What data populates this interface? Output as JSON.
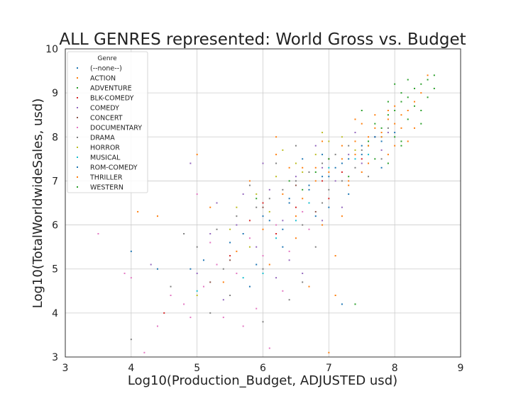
{
  "chart_data": {
    "type": "scatter",
    "title": "ALL GENRES represented: World Gross vs. Budget",
    "xlabel": "Log10(Production_Budget, ADJUSTED usd)",
    "ylabel": "Log10(TotalWorldwideSales, usd)",
    "xlim": [
      3,
      9
    ],
    "ylim": [
      3,
      10
    ],
    "xticks": [
      3,
      4,
      5,
      6,
      7,
      8,
      9
    ],
    "yticks": [
      3,
      4,
      5,
      6,
      7,
      8,
      9,
      10
    ],
    "grid": true,
    "legend": {
      "title": "Genre",
      "placement": "top-left",
      "entries": [
        "(--none--)",
        "ACTION",
        "ADVENTURE",
        "BLK-COMEDY",
        "COMEDY",
        "CONCERT",
        "DOCUMENTARY",
        "DRAMA",
        "HORROR",
        "MUSICAL",
        "ROM-COMEDY",
        "THRILLER",
        "WESTERN"
      ]
    },
    "series": [
      {
        "name": "(--none--)",
        "color": "#1f77b4",
        "points": [
          [
            4.0,
            5.4
          ],
          [
            4.9,
            5.0
          ],
          [
            5.5,
            5.6
          ],
          [
            6.0,
            6.2
          ],
          [
            6.4,
            6.6
          ],
          [
            6.7,
            6.9
          ],
          [
            7.0,
            7.1
          ],
          [
            7.2,
            7.4
          ],
          [
            7.5,
            7.6
          ],
          [
            7.8,
            7.9
          ],
          [
            8.0,
            8.1
          ],
          [
            5.8,
            4.6
          ],
          [
            6.3,
            5.9
          ],
          [
            7.3,
            6.7
          ],
          [
            6.9,
            7.6
          ]
        ]
      },
      {
        "name": "ACTION",
        "color": "#ff7f0e",
        "points": [
          [
            5.0,
            7.6
          ],
          [
            6.6,
            7.3
          ],
          [
            7.0,
            7.5
          ],
          [
            7.2,
            7.8
          ],
          [
            7.4,
            7.9
          ],
          [
            7.5,
            7.2
          ],
          [
            7.6,
            8.0
          ],
          [
            7.7,
            8.2
          ],
          [
            7.8,
            8.1
          ],
          [
            7.9,
            8.4
          ],
          [
            8.0,
            8.3
          ],
          [
            8.1,
            8.5
          ],
          [
            8.2,
            8.6
          ],
          [
            8.3,
            8.8
          ],
          [
            8.4,
            9.0
          ],
          [
            8.5,
            9.4
          ],
          [
            7.3,
            6.9
          ],
          [
            7.9,
            7.6
          ],
          [
            6.9,
            7.9
          ],
          [
            8.2,
            7.9
          ],
          [
            6.2,
            8.0
          ],
          [
            7.1,
            4.4
          ],
          [
            7.0,
            3.1
          ],
          [
            4.1,
            6.3
          ],
          [
            6.5,
            6.2
          ],
          [
            7.6,
            7.4
          ],
          [
            8.0,
            8.7
          ],
          [
            8.3,
            8.2
          ],
          [
            7.4,
            8.4
          ],
          [
            6.8,
            7.0
          ]
        ]
      },
      {
        "name": "ADVENTURE",
        "color": "#2ca02c",
        "points": [
          [
            7.6,
            7.8
          ],
          [
            7.8,
            8.2
          ],
          [
            7.9,
            8.5
          ],
          [
            8.0,
            8.6
          ],
          [
            8.1,
            8.8
          ],
          [
            8.2,
            8.9
          ],
          [
            8.3,
            9.1
          ],
          [
            8.4,
            9.2
          ],
          [
            8.5,
            8.9
          ],
          [
            8.6,
            9.1
          ],
          [
            8.0,
            8.0
          ],
          [
            8.2,
            8.4
          ],
          [
            7.7,
            8.3
          ],
          [
            8.3,
            8.7
          ],
          [
            8.1,
            9.0
          ],
          [
            8.4,
            8.6
          ],
          [
            8.0,
            9.2
          ],
          [
            7.9,
            8.8
          ],
          [
            8.5,
            9.3
          ],
          [
            8.6,
            9.4
          ],
          [
            7.5,
            8.6
          ],
          [
            8.2,
            9.3
          ],
          [
            7.7,
            7.5
          ],
          [
            8.4,
            8.3
          ],
          [
            8.1,
            7.9
          ]
        ]
      },
      {
        "name": "BLK-COMEDY",
        "color": "#d62728",
        "points": [
          [
            4.5,
            4.0
          ],
          [
            5.5,
            5.3
          ],
          [
            6.0,
            6.5
          ],
          [
            6.5,
            6.4
          ],
          [
            6.9,
            7.0
          ],
          [
            7.2,
            7.2
          ],
          [
            7.5,
            7.5
          ],
          [
            6.2,
            5.8
          ],
          [
            7.0,
            6.6
          ],
          [
            5.8,
            6.1
          ]
        ]
      },
      {
        "name": "COMEDY",
        "color": "#9467bd",
        "points": [
          [
            4.3,
            5.1
          ],
          [
            4.9,
            7.4
          ],
          [
            5.2,
            5.8
          ],
          [
            5.6,
            6.0
          ],
          [
            5.9,
            5.5
          ],
          [
            6.1,
            6.8
          ],
          [
            6.3,
            6.1
          ],
          [
            6.5,
            7.1
          ],
          [
            6.7,
            6.5
          ],
          [
            6.9,
            7.3
          ],
          [
            7.1,
            7.0
          ],
          [
            7.3,
            7.6
          ],
          [
            7.5,
            7.4
          ],
          [
            7.6,
            7.9
          ],
          [
            7.8,
            7.7
          ],
          [
            6.0,
            7.4
          ],
          [
            6.6,
            4.9
          ],
          [
            5.4,
            4.3
          ],
          [
            6.8,
            7.8
          ],
          [
            7.2,
            6.4
          ],
          [
            5.7,
            6.7
          ],
          [
            7.4,
            8.1
          ],
          [
            6.4,
            5.2
          ],
          [
            7.0,
            7.5
          ],
          [
            5.3,
            6.5
          ],
          [
            6.2,
            4.8
          ],
          [
            7.7,
            8.0
          ],
          [
            6.9,
            6.1
          ],
          [
            5.0,
            4.9
          ],
          [
            7.9,
            8.1
          ]
        ]
      },
      {
        "name": "CONCERT",
        "color": "#8c564b",
        "points": [
          [
            5.5,
            5.2
          ],
          [
            6.0,
            6.4
          ],
          [
            6.5,
            6.9
          ],
          [
            5.2,
            4.7
          ],
          [
            6.8,
            6.3
          ]
        ]
      },
      {
        "name": "DOCUMENTARY",
        "color": "#e377c2",
        "points": [
          [
            3.5,
            5.8
          ],
          [
            4.0,
            4.8
          ],
          [
            4.4,
            3.7
          ],
          [
            4.8,
            4.2
          ],
          [
            5.1,
            4.6
          ],
          [
            5.3,
            5.1
          ],
          [
            5.6,
            4.9
          ],
          [
            5.8,
            5.7
          ],
          [
            6.0,
            5.3
          ],
          [
            6.2,
            6.0
          ],
          [
            6.4,
            5.4
          ],
          [
            6.7,
            5.9
          ],
          [
            5.0,
            6.7
          ],
          [
            4.6,
            4.4
          ],
          [
            5.7,
            3.7
          ],
          [
            6.3,
            4.5
          ],
          [
            4.2,
            3.1
          ],
          [
            5.4,
            3.9
          ],
          [
            5.9,
            4.1
          ],
          [
            6.6,
            6.3
          ],
          [
            4.9,
            3.9
          ],
          [
            5.2,
            5.6
          ],
          [
            6.1,
            3.2
          ],
          [
            3.9,
            4.9
          ]
        ]
      },
      {
        "name": "DRAMA",
        "color": "#7f7f7f",
        "points": [
          [
            4.0,
            3.4
          ],
          [
            4.6,
            4.6
          ],
          [
            5.0,
            5.5
          ],
          [
            5.3,
            5.9
          ],
          [
            5.6,
            6.2
          ],
          [
            5.9,
            6.4
          ],
          [
            6.1,
            6.6
          ],
          [
            6.3,
            6.8
          ],
          [
            6.5,
            7.0
          ],
          [
            6.7,
            7.2
          ],
          [
            6.9,
            7.4
          ],
          [
            7.1,
            7.6
          ],
          [
            7.3,
            7.8
          ],
          [
            7.5,
            7.7
          ],
          [
            7.7,
            8.0
          ],
          [
            7.9,
            8.2
          ],
          [
            6.0,
            5.0
          ],
          [
            6.4,
            4.3
          ],
          [
            6.8,
            5.5
          ],
          [
            5.5,
            4.4
          ],
          [
            6.6,
            6.0
          ],
          [
            7.0,
            6.8
          ],
          [
            7.2,
            7.0
          ],
          [
            7.4,
            7.3
          ],
          [
            5.8,
            6.9
          ],
          [
            6.2,
            7.4
          ],
          [
            4.8,
            5.8
          ],
          [
            5.2,
            4.0
          ],
          [
            6.5,
            7.8
          ],
          [
            7.6,
            7.1
          ],
          [
            5.4,
            5.0
          ],
          [
            6.9,
            6.5
          ],
          [
            7.8,
            7.5
          ],
          [
            6.0,
            3.8
          ],
          [
            6.6,
            4.7
          ]
        ]
      },
      {
        "name": "HORROR",
        "color": "#bcbd22",
        "points": [
          [
            5.0,
            4.4
          ],
          [
            5.5,
            5.9
          ],
          [
            5.9,
            6.7
          ],
          [
            6.2,
            7.1
          ],
          [
            6.5,
            7.4
          ],
          [
            6.8,
            7.6
          ],
          [
            7.0,
            7.9
          ],
          [
            7.2,
            8.0
          ],
          [
            7.4,
            7.7
          ],
          [
            6.1,
            6.3
          ],
          [
            6.6,
            7.2
          ],
          [
            5.8,
            5.5
          ],
          [
            6.9,
            8.1
          ],
          [
            6.3,
            7.7
          ],
          [
            5.6,
            6.4
          ]
        ]
      },
      {
        "name": "MUSICAL",
        "color": "#17becf",
        "points": [
          [
            5.0,
            4.5
          ],
          [
            5.7,
            4.8
          ],
          [
            6.2,
            5.7
          ],
          [
            6.7,
            6.5
          ],
          [
            7.0,
            7.3
          ],
          [
            7.4,
            7.5
          ],
          [
            7.6,
            7.6
          ],
          [
            6.5,
            6.1
          ],
          [
            7.8,
            8.0
          ],
          [
            6.0,
            4.9
          ]
        ]
      },
      {
        "name": "ROM-COMEDY",
        "color": "#1f77b4",
        "points": [
          [
            4.4,
            5.0
          ],
          [
            5.1,
            5.2
          ],
          [
            5.7,
            5.8
          ],
          [
            6.1,
            6.1
          ],
          [
            6.4,
            6.5
          ],
          [
            6.7,
            6.8
          ],
          [
            6.9,
            7.1
          ],
          [
            7.1,
            7.3
          ],
          [
            7.3,
            7.5
          ],
          [
            7.5,
            7.8
          ],
          [
            7.7,
            8.0
          ],
          [
            6.3,
            5.5
          ],
          [
            7.0,
            6.4
          ],
          [
            6.6,
            7.5
          ],
          [
            7.2,
            4.2
          ],
          [
            5.9,
            5.1
          ],
          [
            7.8,
            7.3
          ],
          [
            6.8,
            6.2
          ]
        ]
      },
      {
        "name": "THRILLER",
        "color": "#ff7f0e",
        "points": [
          [
            4.4,
            6.2
          ],
          [
            5.2,
            6.4
          ],
          [
            5.6,
            5.4
          ],
          [
            6.0,
            5.9
          ],
          [
            6.3,
            6.7
          ],
          [
            6.6,
            6.6
          ],
          [
            6.8,
            7.3
          ],
          [
            7.0,
            7.2
          ],
          [
            7.2,
            7.5
          ],
          [
            7.4,
            7.6
          ],
          [
            7.6,
            7.8
          ],
          [
            7.8,
            8.0
          ],
          [
            8.0,
            7.8
          ],
          [
            6.5,
            5.7
          ],
          [
            6.9,
            6.0
          ],
          [
            7.3,
            7.0
          ],
          [
            5.4,
            4.7
          ],
          [
            6.2,
            7.6
          ],
          [
            7.1,
            5.3
          ],
          [
            7.5,
            8.3
          ],
          [
            5.8,
            7.0
          ],
          [
            6.7,
            4.6
          ],
          [
            7.7,
            8.5
          ],
          [
            6.4,
            7.3
          ],
          [
            7.9,
            8.6
          ],
          [
            8.1,
            8.2
          ],
          [
            6.1,
            5.1
          ],
          [
            7.2,
            6.2
          ]
        ]
      },
      {
        "name": "WESTERN",
        "color": "#2ca02c",
        "points": [
          [
            5.9,
            6.6
          ],
          [
            6.4,
            7.0
          ],
          [
            6.8,
            7.2
          ],
          [
            7.0,
            7.5
          ],
          [
            7.3,
            7.1
          ],
          [
            7.6,
            7.9
          ],
          [
            7.9,
            7.4
          ],
          [
            8.1,
            7.8
          ],
          [
            6.6,
            6.8
          ],
          [
            7.4,
            4.2
          ]
        ]
      }
    ]
  }
}
